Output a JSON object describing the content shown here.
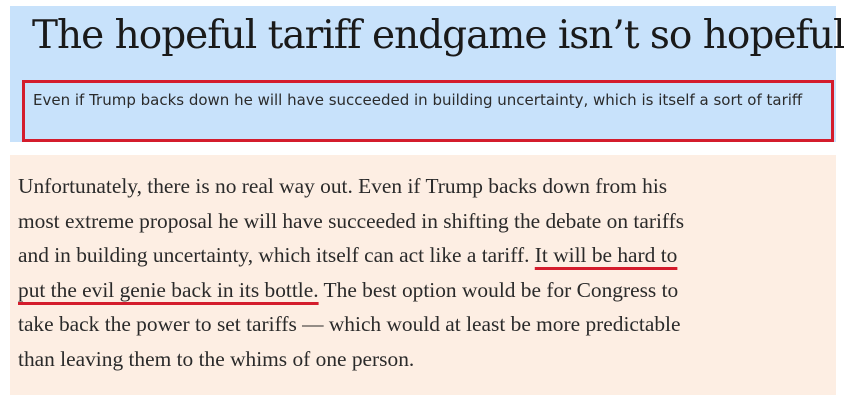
{
  "article": {
    "headline": "The hopeful tariff endgame isn’t so hopeful",
    "subheadline": "Even if Trump backs down he will have succeeded in building uncertainty, which is itself a sort of tariff",
    "body": {
      "line1": "Unfortunately, there is no real way out. Even if Trump backs down from his",
      "line2": "most extreme proposal he will have succeeded in shifting the debate on tariffs",
      "line3_plain": "and in building uncertainty, which itself can act like a tariff. ",
      "line3_highlight": "It will be hard to",
      "line4_highlight": "put the evil genie back in its bottle.",
      "line4_plain": " The best option would be for Congress to",
      "line5": "take back the power to set tariffs — which would at least be more predictable",
      "line6": "than leaving them to the whims of one person."
    }
  },
  "colors": {
    "headline_background": "#c8e2fb",
    "body_background": "#fdeee3",
    "highlight_red": "#d41c2c"
  }
}
